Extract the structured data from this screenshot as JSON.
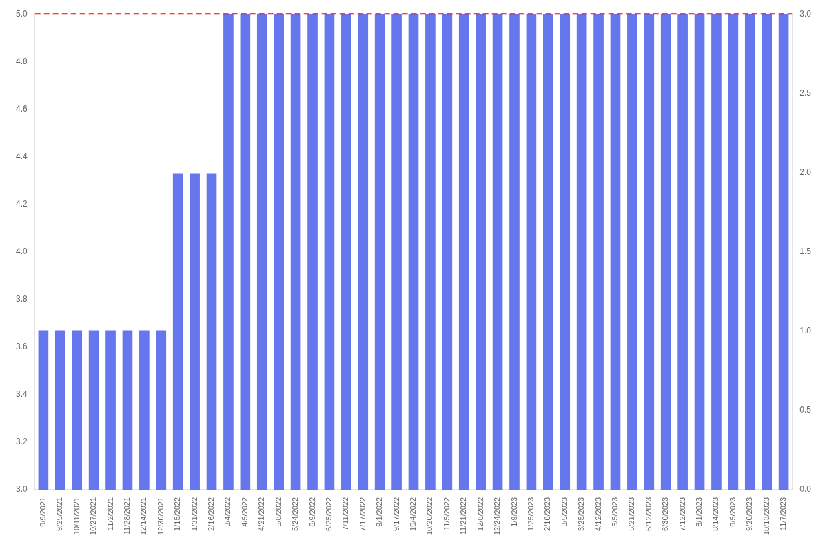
{
  "chart_data": {
    "type": "bar",
    "categories": [
      "9/9/2021",
      "9/25/2021",
      "10/11/2021",
      "10/27/2021",
      "11/2/2021",
      "11/28/2021",
      "12/14/2021",
      "12/30/2021",
      "1/15/2022",
      "1/31/2022",
      "2/16/2022",
      "3/4/2022",
      "4/5/2022",
      "4/21/2022",
      "5/8/2022",
      "5/24/2022",
      "6/9/2022",
      "6/25/2022",
      "7/11/2022",
      "7/17/2022",
      "9/1/2022",
      "9/17/2022",
      "10/4/2022",
      "10/20/2022",
      "11/5/2022",
      "11/21/2022",
      "12/8/2022",
      "12/24/2022",
      "1/9/2023",
      "1/25/2023",
      "2/10/2023",
      "3/5/2023",
      "3/25/2023",
      "4/12/2023",
      "5/5/2023",
      "5/21/2023",
      "6/12/2023",
      "6/30/2023",
      "7/12/2023",
      "8/1/2023",
      "8/14/2023",
      "9/5/2023",
      "9/20/2023",
      "10/13/2023",
      "11/7/2023"
    ],
    "values": [
      3.67,
      3.67,
      3.67,
      3.67,
      3.67,
      3.67,
      3.67,
      3.67,
      4.33,
      4.33,
      4.33,
      5.0,
      5.0,
      5.0,
      5.0,
      5.0,
      5.0,
      5.0,
      5.0,
      5.0,
      5.0,
      5.0,
      5.0,
      5.0,
      5.0,
      5.0,
      5.0,
      5.0,
      5.0,
      5.0,
      5.0,
      5.0,
      5.0,
      5.0,
      5.0,
      5.0,
      5.0,
      5.0,
      5.0,
      5.0,
      5.0,
      5.0,
      5.0,
      5.0,
      5.0
    ],
    "color": "#6677ee",
    "ylim": [
      3.0,
      5.0
    ],
    "yticks": [
      {
        "value": 3.0,
        "label": "3.0"
      },
      3.2,
      3.4,
      3.6,
      3.8,
      {
        "value": 4.0,
        "label": "4.0"
      },
      4.2,
      4.4,
      4.6,
      4.8,
      {
        "value": 5.0,
        "label": "5.0"
      }
    ],
    "y2lim": [
      0,
      3.0
    ],
    "y2ticks": [
      {
        "value": 0,
        "label": "0.0"
      },
      0.5,
      {
        "value": 1.0,
        "label": "1.0"
      },
      1.5,
      {
        "value": 2.0,
        "label": "2.0"
      },
      2.5,
      {
        "value": 3.0,
        "label": "3.0"
      }
    ],
    "grid": false,
    "annotations": [
      {
        "type": "hline",
        "y": 5.0,
        "color": "#ff0000",
        "line_style": "dashed"
      }
    ]
  }
}
